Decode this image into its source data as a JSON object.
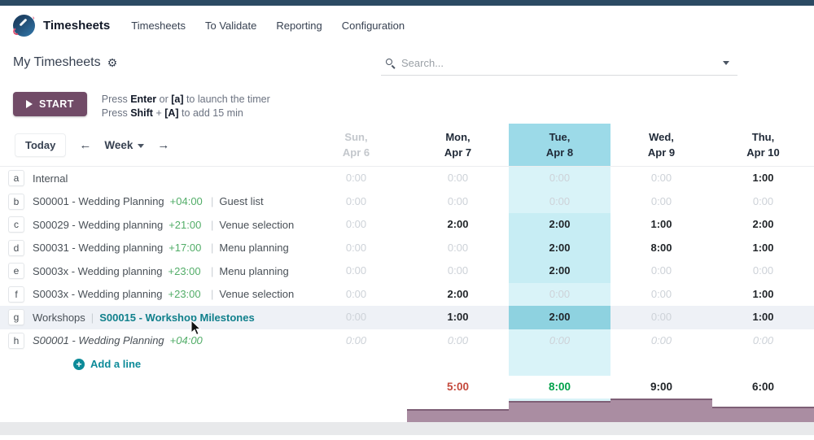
{
  "topbar": {
    "app_name": "Timesheets",
    "menu": [
      "Timesheets",
      "To Validate",
      "Reporting",
      "Configuration"
    ]
  },
  "control_panel": {
    "title": "My Timesheets",
    "gear_icon": "gear-icon",
    "search_placeholder": "Search..."
  },
  "timer": {
    "start_label": "START",
    "hints": [
      {
        "segs": [
          [
            "Press ",
            0
          ],
          [
            "Enter",
            1
          ],
          [
            " or ",
            0
          ],
          [
            "[a]",
            1
          ],
          [
            " to launch the timer",
            0
          ]
        ]
      },
      {
        "segs": [
          [
            "Press ",
            0
          ],
          [
            "Shift",
            1
          ],
          [
            " + ",
            0
          ],
          [
            "[A]",
            1
          ],
          [
            " to add 15 min",
            0
          ]
        ]
      }
    ]
  },
  "week_nav": {
    "today": "Today",
    "prev": "←",
    "range_label": "Week",
    "next": "→"
  },
  "grid": {
    "columns": [
      {
        "day": "Sun,",
        "date": "Apr 6",
        "muted": true,
        "today": false
      },
      {
        "day": "Mon,",
        "date": "Apr 7",
        "muted": false,
        "today": false
      },
      {
        "day": "Tue,",
        "date": "Apr 8",
        "muted": false,
        "today": true
      },
      {
        "day": "Wed,",
        "date": "Apr 9",
        "muted": false,
        "today": false
      },
      {
        "day": "Thu,",
        "date": "Apr 10",
        "muted": false,
        "today": false
      }
    ],
    "rows": [
      {
        "letter": "a",
        "name": "Internal",
        "suffix": "",
        "task": "",
        "link": "",
        "italic": false,
        "highlight": false,
        "values": [
          "0:00",
          "0:00",
          "0:00",
          "0:00",
          "1:00"
        ]
      },
      {
        "letter": "b",
        "name": "S00001 - Wedding Planning",
        "suffix": "+04:00",
        "task": "Guest list",
        "link": "",
        "italic": false,
        "highlight": false,
        "values": [
          "0:00",
          "0:00",
          "0:00",
          "0:00",
          "0:00"
        ]
      },
      {
        "letter": "c",
        "name": "S00029 - Wedding planning",
        "suffix": "+21:00",
        "task": "Venue selection",
        "link": "",
        "italic": false,
        "highlight": false,
        "values": [
          "0:00",
          "2:00",
          "2:00",
          "1:00",
          "2:00"
        ]
      },
      {
        "letter": "d",
        "name": "S00031 - Wedding planning",
        "suffix": "+17:00",
        "task": "Menu planning",
        "link": "",
        "italic": false,
        "highlight": false,
        "values": [
          "0:00",
          "0:00",
          "2:00",
          "8:00",
          "1:00"
        ]
      },
      {
        "letter": "e",
        "name": "S0003x - Wedding planning",
        "suffix": "+23:00",
        "task": "Menu planning",
        "link": "",
        "italic": false,
        "highlight": false,
        "values": [
          "0:00",
          "0:00",
          "2:00",
          "0:00",
          "0:00"
        ]
      },
      {
        "letter": "f",
        "name": "S0003x - Wedding planning",
        "suffix": "+23:00",
        "task": "Venue selection",
        "link": "",
        "italic": false,
        "highlight": false,
        "values": [
          "0:00",
          "2:00",
          "0:00",
          "0:00",
          "1:00"
        ]
      },
      {
        "letter": "g",
        "name": "Workshops",
        "suffix": "",
        "task": "",
        "link": "S00015 - Workshop Milestones",
        "italic": false,
        "highlight": true,
        "values": [
          "0:00",
          "1:00",
          "2:00",
          "0:00",
          "1:00"
        ]
      },
      {
        "letter": "h",
        "name": "S00001 - Wedding Planning",
        "suffix": "+04:00",
        "task": "",
        "link": "",
        "italic": true,
        "highlight": false,
        "values": [
          "0:00",
          "0:00",
          "0:00",
          "0:00",
          "0:00"
        ]
      }
    ],
    "add_line_label": "Add a line",
    "totals": {
      "values": [
        "",
        "5:00",
        "8:00",
        "9:00",
        "6:00"
      ],
      "status": [
        "",
        "danger",
        "success",
        "normal",
        "normal"
      ]
    },
    "day_total_hours": [
      0,
      5,
      8,
      9,
      6
    ]
  },
  "colors": {
    "primary_button": "#714b67",
    "today_column": "#9cdae8",
    "today_column_light": "#d9f3f8",
    "today_cell_hover": "#8ed2e0",
    "success_green": "#00a14a",
    "soft_green": "#52ad68",
    "danger_red": "#c4493c",
    "teal_link": "#11808c",
    "bar_fill": "#aa8da2",
    "top_strip": "#2b4a63"
  }
}
